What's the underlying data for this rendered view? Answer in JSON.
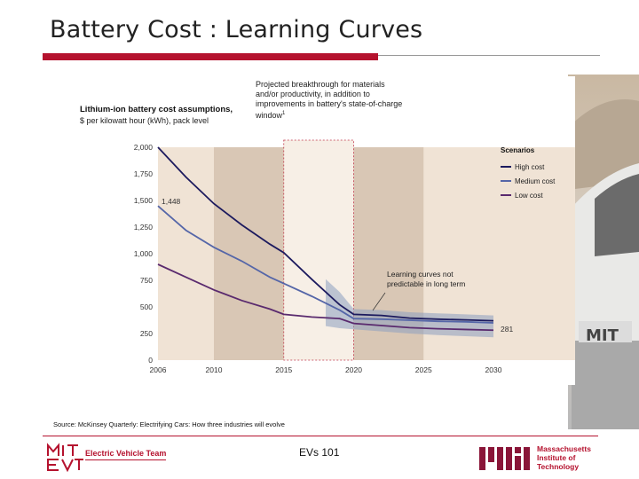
{
  "slide": {
    "title": "Battery Cost : Learning Curves",
    "source": "Source: McKinsey Quarterly: Electrifying Cars: How three industries will evolve",
    "footer_center": "EVs 101",
    "footer_left": "Electric Vehicle Team",
    "footer_right_lines": [
      "Massachusetts",
      "Institute of",
      "Technology"
    ],
    "accent_color": "#b5122e"
  },
  "chart_data": {
    "type": "line",
    "title": "Lithium-ion battery cost assumptions,",
    "subtitle": "$ per kilowatt hour (kWh), pack level",
    "annotation_top": "Projected breakthrough for materials and/or productivity, in addition to improvements in battery's state-of-charge window",
    "annotation_top_marker": "1",
    "annotation_uncertainty": "Learning curves not predictable in long term",
    "label_start": "1,448",
    "label_end": "281",
    "legend_title": "Scenarios",
    "legend_position": "top-right",
    "x_ticks": [
      "2006",
      "2010",
      "2015",
      "2020",
      "2025",
      "2030"
    ],
    "y_ticks": [
      "0",
      "250",
      "500",
      "750",
      "1,000",
      "1,250",
      "1,500",
      "1,750",
      "2,000"
    ],
    "xlim": [
      2006,
      2030
    ],
    "ylim": [
      0,
      2000
    ],
    "shaded_periods": [
      [
        2010,
        2015
      ],
      [
        2020,
        2025
      ]
    ],
    "breakthrough_window": [
      2015,
      2020
    ],
    "x": [
      2006,
      2008,
      2010,
      2012,
      2014,
      2015,
      2017,
      2019,
      2020,
      2022,
      2024,
      2026,
      2028,
      2030
    ],
    "series": [
      {
        "name": "High cost",
        "color": "#1c1a5e",
        "values": [
          2000,
          1720,
          1470,
          1270,
          1090,
          1010,
          760,
          520,
          430,
          420,
          395,
          385,
          378,
          370
        ]
      },
      {
        "name": "Medium cost",
        "color": "#5566a8",
        "values": [
          1448,
          1220,
          1060,
          930,
          780,
          720,
          600,
          470,
          390,
          385,
          375,
          365,
          360,
          350
        ]
      },
      {
        "name": "Low cost",
        "color": "#5a2a6e",
        "values": [
          900,
          780,
          660,
          560,
          480,
          430,
          405,
          390,
          345,
          325,
          305,
          295,
          288,
          281
        ]
      }
    ],
    "uncertainty_band": {
      "color": "#8d9ec0",
      "x": [
        2018,
        2019,
        2020,
        2022,
        2024,
        2026,
        2028,
        2030
      ],
      "upper": [
        760,
        640,
        480,
        470,
        450,
        440,
        430,
        420
      ],
      "lower": [
        320,
        300,
        290,
        270,
        250,
        235,
        225,
        215
      ]
    }
  }
}
